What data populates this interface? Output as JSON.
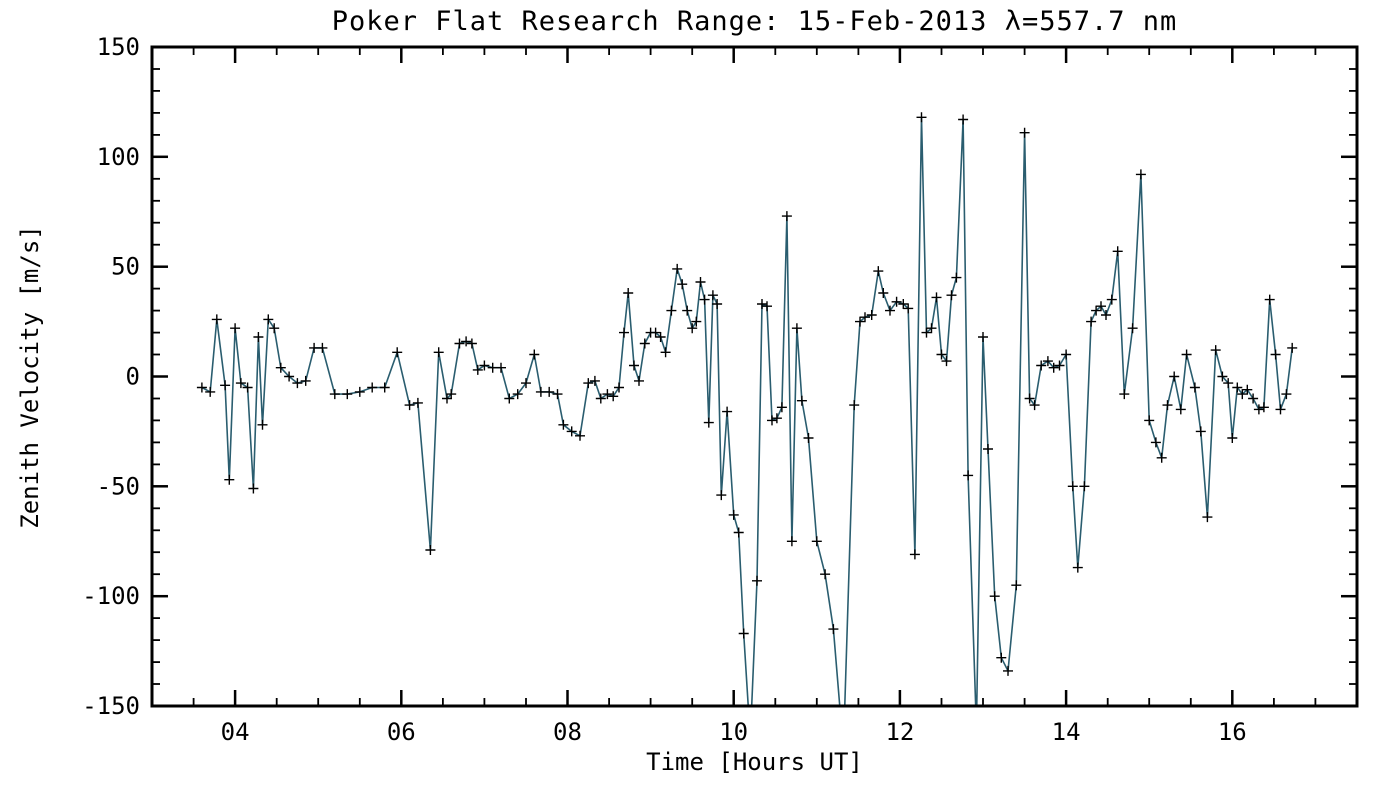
{
  "chart_data": {
    "type": "line",
    "title": "Poker Flat Research Range: 15-Feb-2013 λ=557.7 nm",
    "xlabel": "Time [Hours UT]",
    "ylabel": "Zenith Velocity [m/s]",
    "xlim": [
      3,
      17.5
    ],
    "ylim": [
      -150,
      150
    ],
    "x_major_ticks": [
      4,
      6,
      8,
      10,
      12,
      14,
      16
    ],
    "x_tick_labels": [
      "04",
      "06",
      "08",
      "10",
      "12",
      "14",
      "16"
    ],
    "x_minor_step": 0.5,
    "y_major_ticks": [
      -150,
      -100,
      -50,
      0,
      50,
      100,
      150
    ],
    "y_tick_labels": [
      "-150",
      "-100",
      "-50",
      "0",
      "50",
      "100",
      "150"
    ],
    "y_minor_step": 10,
    "grid": false,
    "legend": "none",
    "line_color": "#2a5d6f",
    "marker": "plus",
    "marker_color": "#000000",
    "axis_color": "#000000",
    "background": "#ffffff",
    "series": [
      {
        "name": "zenith-velocity",
        "x": [
          3.6,
          3.7,
          3.78,
          3.88,
          3.93,
          4.0,
          4.07,
          4.15,
          4.22,
          4.28,
          4.33,
          4.4,
          4.47,
          4.55,
          4.65,
          4.75,
          4.85,
          4.95,
          5.05,
          5.2,
          5.35,
          5.5,
          5.65,
          5.8,
          5.95,
          6.1,
          6.2,
          6.35,
          6.45,
          6.55,
          6.6,
          6.7,
          6.78,
          6.85,
          6.92,
          7.0,
          7.1,
          7.2,
          7.3,
          7.4,
          7.5,
          7.6,
          7.68,
          7.78,
          7.88,
          7.95,
          8.05,
          8.15,
          8.25,
          8.33,
          8.4,
          8.48,
          8.55,
          8.62,
          8.68,
          8.73,
          8.8,
          8.86,
          8.93,
          9.0,
          9.06,
          9.12,
          9.18,
          9.25,
          9.32,
          9.38,
          9.44,
          9.5,
          9.55,
          9.6,
          9.65,
          9.7,
          9.75,
          9.8,
          9.85,
          9.92,
          10.0,
          10.06,
          10.12,
          10.2,
          10.28,
          10.34,
          10.4,
          10.46,
          10.52,
          10.58,
          10.64,
          10.7,
          10.76,
          10.82,
          10.9,
          11.0,
          11.1,
          11.2,
          11.32,
          11.45,
          11.52,
          11.58,
          11.66,
          11.74,
          11.8,
          11.88,
          11.96,
          12.04,
          12.1,
          12.18,
          12.26,
          12.32,
          12.38,
          12.44,
          12.5,
          12.56,
          12.62,
          12.68,
          12.76,
          12.82,
          12.92,
          13.0,
          13.06,
          13.14,
          13.22,
          13.3,
          13.4,
          13.5,
          13.56,
          13.62,
          13.7,
          13.78,
          13.85,
          13.92,
          14.0,
          14.08,
          14.14,
          14.22,
          14.3,
          14.36,
          14.42,
          14.48,
          14.55,
          14.62,
          14.7,
          14.8,
          14.9,
          15.0,
          15.08,
          15.15,
          15.22,
          15.3,
          15.38,
          15.45,
          15.55,
          15.62,
          15.7,
          15.8,
          15.88,
          15.95,
          16.0,
          16.06,
          16.12,
          16.18,
          16.25,
          16.32,
          16.38,
          16.45,
          16.52,
          16.58,
          16.65,
          16.72
        ],
        "y": [
          -5,
          -7,
          26,
          -4,
          -47,
          22,
          -3,
          -5,
          -51,
          18,
          -22,
          26,
          22,
          4,
          0,
          -3,
          -2,
          13,
          13,
          -8,
          -8,
          -7,
          -5,
          -5,
          11,
          -13,
          -12,
          -79,
          11,
          -10,
          -8,
          15,
          16,
          15,
          3,
          5,
          4,
          4,
          -10,
          -8,
          -3,
          10,
          -7,
          -7,
          -8,
          -22,
          -25,
          -27,
          -3,
          -2,
          -10,
          -8,
          -9,
          -5,
          20,
          38,
          5,
          -2,
          15,
          20,
          20,
          18,
          11,
          30,
          49,
          42,
          30,
          22,
          25,
          43,
          35,
          -21,
          37,
          33,
          -54,
          -16,
          -63,
          -71,
          -117,
          -165,
          -93,
          33,
          32,
          -20,
          -19,
          -14,
          73,
          -75,
          22,
          -11,
          -28,
          -75,
          -90,
          -115,
          -170,
          -13,
          25,
          27,
          28,
          48,
          38,
          30,
          34,
          33,
          31,
          -81,
          118,
          20,
          22,
          36,
          10,
          7,
          37,
          45,
          117,
          -45,
          -160,
          18,
          -33,
          -100,
          -128,
          -134,
          -95,
          111,
          -10,
          -13,
          5,
          7,
          4,
          5,
          10,
          -50,
          -87,
          -50,
          25,
          30,
          32,
          28,
          35,
          57,
          -8,
          22,
          92,
          -20,
          -30,
          -37,
          -13,
          0,
          -15,
          10,
          -5,
          -25,
          -64,
          12,
          0,
          -3,
          -28,
          -5,
          -8,
          -6,
          -10,
          -15,
          -14,
          35,
          10,
          -15,
          -8,
          13
        ]
      }
    ]
  }
}
